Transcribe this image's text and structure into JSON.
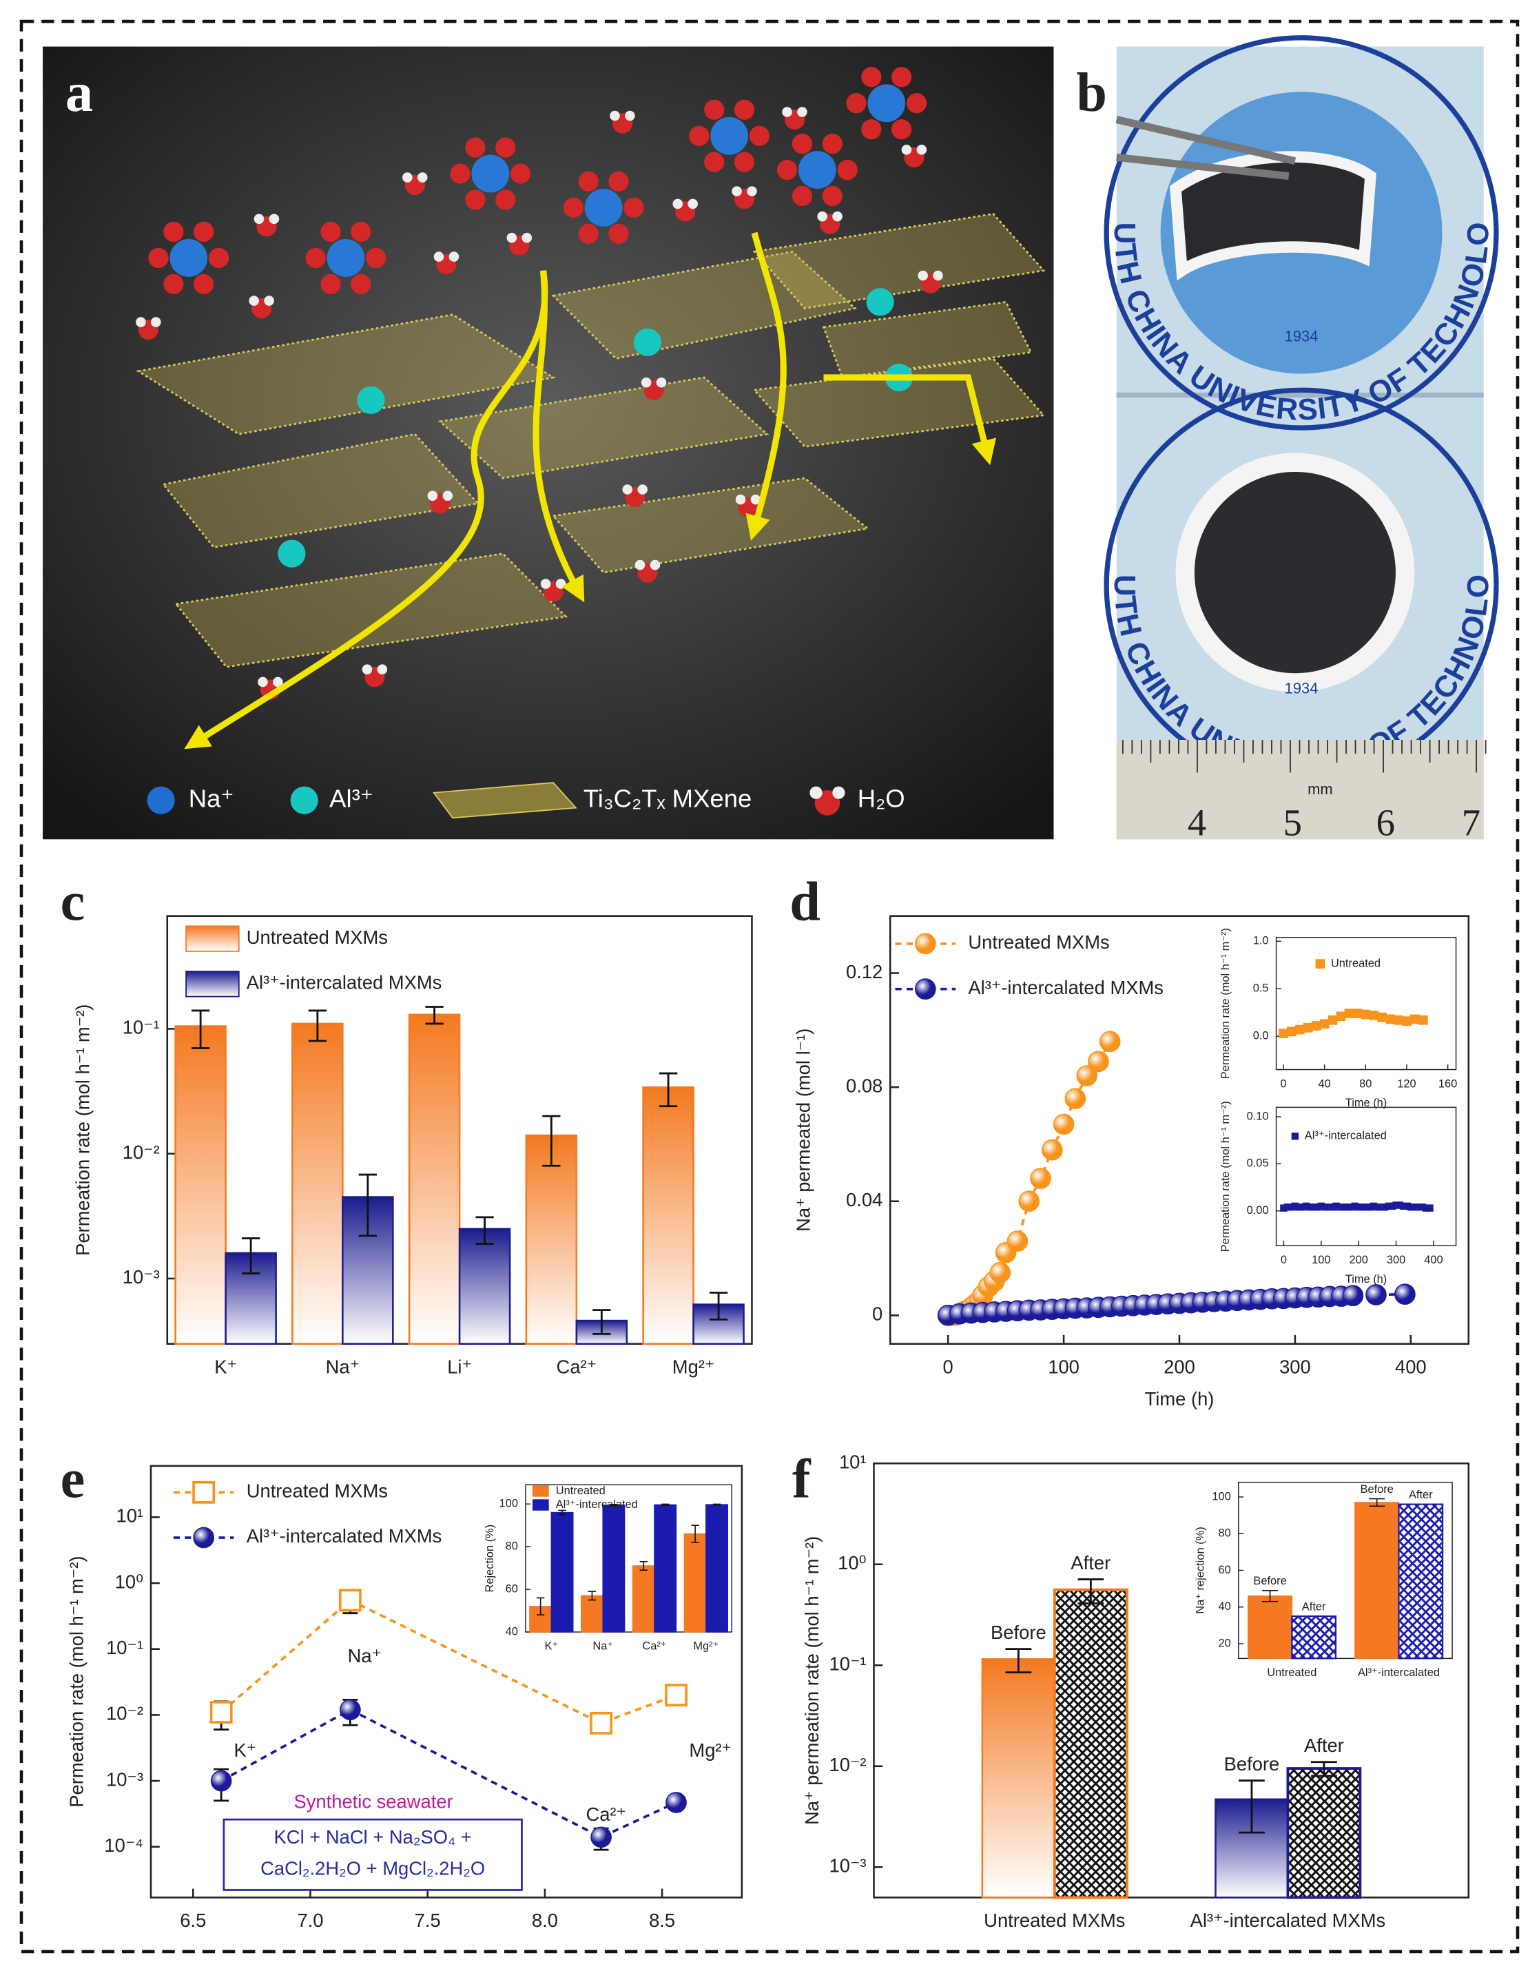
{
  "illustrations": {
    "a": {
      "label": "a",
      "legend": [
        "Na⁺",
        "Al³⁺",
        "Ti₃C₂Tₓ MXene",
        "H₂O"
      ]
    },
    "b": {
      "label": "b",
      "logo_text": "SOUTH CHINA UNIVERSITY OF TECHNOLOGY",
      "year": "1934",
      "ruler_unit": "mm",
      "ruler_numbers": [
        "4",
        "5",
        "6",
        "7"
      ]
    }
  },
  "chart_data": [
    {
      "label": "c",
      "type": "bar",
      "ylabel": "Permeation rate (mol h⁻¹ m⁻²)",
      "categories": [
        "K⁺",
        "Na⁺",
        "Li⁺",
        "Ca²⁺",
        "Mg²⁺"
      ],
      "ylog": true,
      "ylim": [
        0.0003,
        0.8
      ],
      "yticks": [
        {
          "value": 0.001,
          "label": "10⁻³"
        },
        {
          "value": 0.01,
          "label": "10⁻²"
        },
        {
          "value": 0.1,
          "label": "10⁻¹"
        }
      ],
      "legend": "upper left",
      "series": [
        {
          "name": "Untreated MXMs",
          "color": "#f47920",
          "gradient": true,
          "values": [
            0.105,
            0.11,
            0.13,
            0.014,
            0.034
          ],
          "errors": [
            0.035,
            0.03,
            0.02,
            0.006,
            0.01
          ]
        },
        {
          "name": "Al³⁺-intercalated MXMs",
          "color": "#1b1b8f",
          "gradient": true,
          "values": [
            0.0016,
            0.0045,
            0.0025,
            0.00046,
            0.00062
          ],
          "errors": [
            0.0005,
            0.0023,
            0.0006,
            0.0001,
            0.00015
          ]
        }
      ]
    },
    {
      "label": "d",
      "type": "scatter",
      "xlabel": "Time (h)",
      "ylabel": "Na⁺ permeated (mol l⁻¹)",
      "xlim": [
        -50,
        450
      ],
      "xticks": [
        0,
        100,
        200,
        300,
        400
      ],
      "ylim": [
        -0.01,
        0.14
      ],
      "yticks": [
        0,
        0.04,
        0.08,
        0.12
      ],
      "line_style": "dashed",
      "legend": "upper left",
      "series": [
        {
          "name": "Untreated MXMs",
          "color": "#f7941d",
          "marker": "circle",
          "x": [
            0,
            3,
            6,
            9,
            12,
            15,
            18,
            21,
            24,
            27,
            30,
            35,
            40,
            45,
            50,
            60,
            70,
            80,
            90,
            100,
            110,
            120,
            130,
            140
          ],
          "values": [
            0,
            0,
            0,
            0.0005,
            0.001,
            0.0015,
            0.002,
            0.003,
            0.004,
            0.005,
            0.007,
            0.01,
            0.012,
            0.015,
            0.022,
            0.026,
            0.04,
            0.048,
            0.058,
            0.067,
            0.076,
            0.084,
            0.089,
            0.096
          ]
        },
        {
          "name": "Al³⁺-intercalated MXMs",
          "color": "#1b1b9a",
          "marker": "circle",
          "x": [
            0,
            10,
            20,
            30,
            40,
            50,
            60,
            70,
            80,
            90,
            100,
            110,
            120,
            130,
            140,
            150,
            160,
            170,
            180,
            190,
            200,
            210,
            220,
            230,
            240,
            250,
            260,
            270,
            280,
            290,
            300,
            310,
            320,
            330,
            340,
            350,
            370,
            395
          ],
          "values": [
            0,
            0.0005,
            0.0008,
            0.001,
            0.0012,
            0.0014,
            0.0016,
            0.0018,
            0.0019,
            0.0021,
            0.0023,
            0.0025,
            0.0026,
            0.0028,
            0.003,
            0.0032,
            0.0034,
            0.0036,
            0.0038,
            0.004,
            0.0042,
            0.0044,
            0.0046,
            0.0048,
            0.005,
            0.0052,
            0.0054,
            0.0056,
            0.0058,
            0.0059,
            0.0061,
            0.0063,
            0.0064,
            0.0066,
            0.0067,
            0.0069,
            0.0072,
            0.0074
          ]
        }
      ]
    },
    {
      "type": "scatter",
      "xlabel": "Time (h)",
      "ylabel": "Permeation rate (mol h⁻¹ m⁻²)",
      "xlim": [
        -7,
        168
      ],
      "xticks": [
        0,
        40,
        80,
        120,
        160
      ],
      "ylim": [
        -0.35,
        1.04
      ],
      "yticks": [
        {
          "value": 0,
          "label": "0.0"
        },
        0.5,
        {
          "value": 1,
          "label": "1.0"
        }
      ],
      "legend": "upper left",
      "series": [
        {
          "name": "Untreated",
          "color": "#f7941d",
          "marker": "square",
          "x": [
            0,
            8,
            16,
            24,
            32,
            40,
            48,
            56,
            64,
            72,
            80,
            88,
            96,
            104,
            112,
            120,
            128,
            136
          ],
          "values": [
            0.03,
            0.05,
            0.07,
            0.09,
            0.11,
            0.13,
            0.17,
            0.21,
            0.24,
            0.24,
            0.23,
            0.22,
            0.2,
            0.18,
            0.17,
            0.16,
            0.18,
            0.17
          ]
        }
      ]
    },
    {
      "type": "scatter",
      "xlabel": "Time (h)",
      "ylabel": "Permeation rate (mol h⁻¹ m⁻²)",
      "xlim": [
        -20,
        460
      ],
      "xticks": [
        0,
        100,
        200,
        300,
        400
      ],
      "ylim": [
        -0.037,
        0.11
      ],
      "yticks": [
        {
          "value": 0,
          "label": "0.00"
        },
        0.05,
        {
          "value": 0.1,
          "label": "0.10"
        }
      ],
      "legend": "upper left",
      "series": [
        {
          "name": "Al³⁺-intercalated",
          "color": "#1b1b9a",
          "marker": "square",
          "x": [
            0,
            10,
            20,
            30,
            40,
            50,
            60,
            70,
            80,
            90,
            100,
            110,
            120,
            130,
            140,
            150,
            160,
            170,
            180,
            190,
            200,
            210,
            220,
            230,
            240,
            250,
            260,
            270,
            280,
            290,
            300,
            310,
            320,
            330,
            340,
            350,
            360,
            370,
            380,
            390
          ],
          "values": [
            0.003,
            0.004,
            0.004,
            0.005,
            0.004,
            0.004,
            0.005,
            0.004,
            0.004,
            0.004,
            0.005,
            0.004,
            0.004,
            0.004,
            0.005,
            0.004,
            0.004,
            0.004,
            0.004,
            0.005,
            0.004,
            0.004,
            0.004,
            0.004,
            0.005,
            0.004,
            0.004,
            0.004,
            0.005,
            0.005,
            0.006,
            0.006,
            0.005,
            0.005,
            0.004,
            0.004,
            0.004,
            0.004,
            0.003,
            0.003
          ]
        }
      ]
    },
    {
      "label": "e",
      "type": "line",
      "ylabel": "Permeation rate (mol h⁻¹ m⁻²)",
      "xlim": [
        6.32,
        8.84
      ],
      "xticks": [
        6.5,
        {
          "value": 7,
          "label": "7.0"
        },
        7.5,
        {
          "value": 8,
          "label": "8.0"
        },
        8.5
      ],
      "ylog": true,
      "ylim": [
        1.7e-05,
        60
      ],
      "yticks": [
        {
          "value": 0.0001,
          "label": "10⁻⁴"
        },
        {
          "value": 0.001,
          "label": "10⁻³"
        },
        {
          "value": 0.01,
          "label": "10⁻²"
        },
        {
          "value": 0.1,
          "label": "10⁻¹"
        },
        {
          "value": 1,
          "label": "10⁰"
        },
        {
          "value": 10,
          "label": "10¹"
        }
      ],
      "line_style": "dashed",
      "legend": "upper left",
      "series": [
        {
          "name": "Untreated MXMs",
          "color": "#f7941d",
          "marker": "square",
          "filled": false,
          "x": [
            6.62,
            7.17,
            8.24,
            8.56
          ],
          "values": [
            0.011,
            0.55,
            0.0075,
            0.02
          ],
          "errors": [
            0.005,
            0.2,
            0.0015,
            0.003
          ]
        },
        {
          "name": "Al³⁺-intercalated MXMs",
          "color": "#1b1b9a",
          "marker": "circle",
          "x": [
            6.62,
            7.17,
            8.24,
            8.56
          ],
          "values": [
            0.001,
            0.012,
            0.00014,
            0.00047
          ],
          "errors": [
            0.0005,
            0.005,
            5e-05,
            5e-05
          ]
        }
      ],
      "point_labels": [
        "K⁺",
        "Na⁺",
        "Ca²⁺",
        "Mg²⁺"
      ],
      "note": {
        "title": "Synthetic seawater",
        "lines": [
          "KCl + NaCl + Na₂SO₄ +",
          "CaCl₂.2H₂O + MgCl₂.2H₂O"
        ]
      }
    },
    {
      "type": "bar",
      "ylabel": "Rejection (%)",
      "categories": [
        "K⁺",
        "Na⁺",
        "Ca²⁺",
        "Mg²⁺"
      ],
      "ylim": [
        40,
        109
      ],
      "yticks": [
        40,
        60,
        80,
        100
      ],
      "legend": "upper left",
      "series": [
        {
          "name": "Untreated",
          "color": "#f47920",
          "values": [
            52,
            57,
            71,
            86
          ],
          "errors": [
            4,
            2,
            2,
            4
          ]
        },
        {
          "name": "Al³⁺-intercalated",
          "color": "#1b1bb0",
          "values": [
            96,
            99.5,
            99.6,
            99.7
          ],
          "errors": [
            1,
            0.3,
            0.3,
            0.2
          ]
        }
      ]
    },
    {
      "label": "f",
      "type": "bar",
      "ylabel": "Na⁺ permeation rate (mol h⁻¹ m⁻²)",
      "categories": [
        "Untreated MXMs",
        "Al³⁺-intercalated MXMs"
      ],
      "category_colors": [
        "#f47920",
        "#1b1b8f"
      ],
      "ylog": true,
      "ylim": [
        0.0005,
        10
      ],
      "yticks": [
        {
          "value": 0.001,
          "label": "10⁻³"
        },
        {
          "value": 0.01,
          "label": "10⁻²"
        },
        {
          "value": 0.1,
          "label": "10⁻¹"
        },
        {
          "value": 1,
          "label": "10⁰"
        },
        {
          "value": 10,
          "label": "10¹"
        }
      ],
      "name_labels": true,
      "series": [
        {
          "name": "Before",
          "gradient": true,
          "values": [
            0.115,
            0.0047
          ],
          "errors": [
            0.03,
            0.0025
          ]
        },
        {
          "name": "After",
          "pattern": "crosshatch",
          "values": [
            0.56,
            0.0095
          ],
          "errors": [
            0.15,
            0.0015
          ]
        }
      ]
    },
    {
      "type": "bar",
      "ylabel": "Na⁺ rejection (%)",
      "categories": [
        "Untreated",
        "Al³⁺-intercalated"
      ],
      "ylim": [
        12,
        108
      ],
      "yticks": [
        20,
        40,
        60,
        80,
        100
      ],
      "name_labels": true,
      "series": [
        {
          "name": "Before",
          "color": "#f47920",
          "values": [
            46,
            97
          ],
          "errors": [
            3,
            2
          ]
        },
        {
          "name": "After",
          "color": "#1b1bb0",
          "pattern": "crosshatch",
          "values": [
            35,
            96
          ]
        }
      ]
    }
  ]
}
